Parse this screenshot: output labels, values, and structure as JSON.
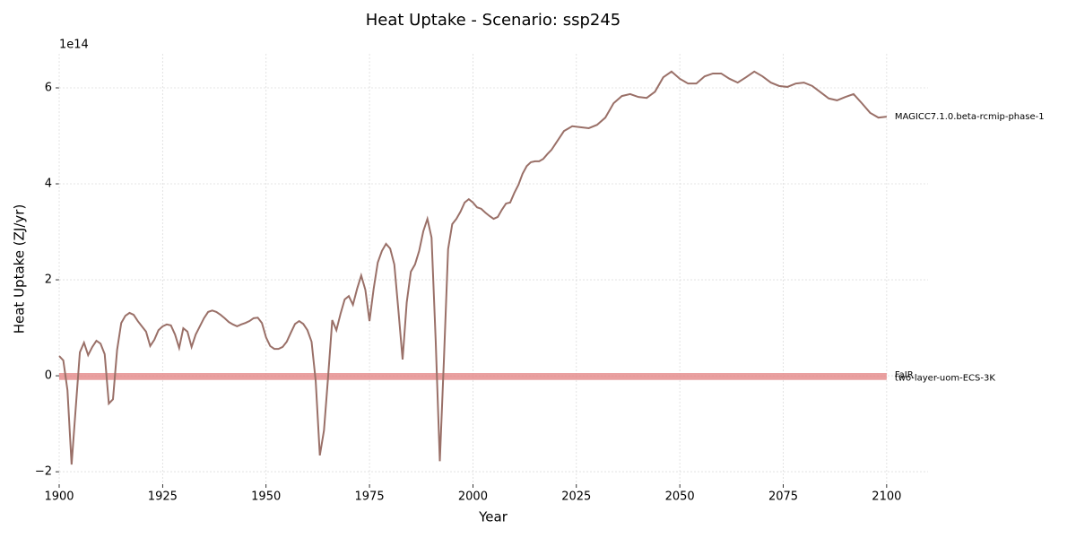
{
  "chart_data": {
    "type": "line",
    "title": "Heat Uptake - Scenario: ssp245",
    "x_label": "Year",
    "y_label": "Heat Uptake (ZJ/yr)",
    "y_offset_label": "1e14",
    "xlim": [
      1900,
      2110
    ],
    "xticks": [
      1900,
      1925,
      1950,
      1975,
      2000,
      2025,
      2050,
      2075,
      2100
    ],
    "ylim": [
      -2.26,
      6.71
    ],
    "yticks": [
      {
        "value": -2,
        "label": "−2"
      },
      0,
      2,
      4,
      6
    ],
    "grid": true,
    "series": [
      {
        "name": "MAGICC7.1.0.beta-rcmip-phase-1",
        "color": "#9a7068",
        "x": [
          1900,
          1901,
          1902,
          1903,
          1904,
          1905,
          1906,
          1907,
          1908,
          1909,
          1910,
          1911,
          1912,
          1913,
          1914,
          1915,
          1916,
          1917,
          1918,
          1919,
          1920,
          1921,
          1922,
          1923,
          1924,
          1925,
          1926,
          1927,
          1928,
          1929,
          1930,
          1931,
          1932,
          1933,
          1934,
          1935,
          1936,
          1937,
          1938,
          1939,
          1940,
          1941,
          1942,
          1943,
          1944,
          1945,
          1946,
          1947,
          1948,
          1949,
          1950,
          1951,
          1952,
          1953,
          1954,
          1955,
          1956,
          1957,
          1958,
          1959,
          1960,
          1961,
          1962,
          1963,
          1964,
          1965,
          1966,
          1967,
          1968,
          1969,
          1970,
          1971,
          1972,
          1973,
          1974,
          1975,
          1976,
          1977,
          1978,
          1979,
          1980,
          1981,
          1982,
          1983,
          1984,
          1985,
          1986,
          1987,
          1988,
          1989,
          1990,
          1991,
          1992,
          1993,
          1994,
          1995,
          1996,
          1997,
          1998,
          1999,
          2000,
          2001,
          2002,
          2003,
          2004,
          2005,
          2006,
          2007,
          2008,
          2009,
          2010,
          2011,
          2012,
          2013,
          2014,
          2015,
          2016,
          2017,
          2018,
          2019,
          2020,
          2022,
          2024,
          2026,
          2028,
          2030,
          2032,
          2034,
          2036,
          2038,
          2040,
          2042,
          2044,
          2046,
          2048,
          2050,
          2052,
          2054,
          2056,
          2058,
          2060,
          2062,
          2064,
          2066,
          2068,
          2070,
          2072,
          2074,
          2076,
          2078,
          2080,
          2082,
          2084,
          2086,
          2088,
          2090,
          2092,
          2094,
          2096,
          2098,
          2100
        ],
        "values": [
          0.41,
          0.32,
          -0.3,
          -1.85,
          -0.67,
          0.49,
          0.69,
          0.43,
          0.6,
          0.73,
          0.67,
          0.45,
          -0.58,
          -0.49,
          0.54,
          1.1,
          1.25,
          1.31,
          1.27,
          1.14,
          1.03,
          0.92,
          0.62,
          0.75,
          0.95,
          1.03,
          1.07,
          1.05,
          0.86,
          0.58,
          0.99,
          0.92,
          0.6,
          0.86,
          1.03,
          1.2,
          1.33,
          1.36,
          1.33,
          1.27,
          1.2,
          1.12,
          1.07,
          1.03,
          1.07,
          1.1,
          1.14,
          1.2,
          1.21,
          1.1,
          0.8,
          0.62,
          0.56,
          0.56,
          0.6,
          0.71,
          0.9,
          1.08,
          1.14,
          1.08,
          0.95,
          0.71,
          -0.11,
          -1.66,
          -1.14,
          -0.02,
          1.16,
          0.95,
          1.29,
          1.59,
          1.66,
          1.48,
          1.81,
          2.09,
          1.79,
          1.14,
          1.81,
          2.36,
          2.6,
          2.75,
          2.65,
          2.32,
          1.35,
          0.34,
          1.53,
          2.17,
          2.32,
          2.6,
          3.01,
          3.27,
          2.88,
          0.73,
          -1.78,
          0.36,
          2.64,
          3.16,
          3.27,
          3.42,
          3.61,
          3.68,
          3.61,
          3.51,
          3.48,
          3.4,
          3.33,
          3.27,
          3.31,
          3.46,
          3.59,
          3.61,
          3.81,
          3.98,
          4.21,
          4.37,
          4.45,
          4.47,
          4.47,
          4.52,
          4.62,
          4.71,
          4.84,
          5.1,
          5.2,
          5.18,
          5.16,
          5.23,
          5.38,
          5.68,
          5.83,
          5.87,
          5.81,
          5.79,
          5.92,
          6.22,
          6.34,
          6.19,
          6.09,
          6.09,
          6.24,
          6.3,
          6.3,
          6.19,
          6.11,
          6.22,
          6.34,
          6.24,
          6.11,
          6.04,
          6.02,
          6.09,
          6.11,
          6.04,
          5.91,
          5.78,
          5.74,
          5.81,
          5.87,
          5.68,
          5.48,
          5.38,
          5.4
        ]
      },
      {
        "name": "FaIR",
        "color": "#e58f8f",
        "x": [
          1900,
          2100
        ],
        "values": [
          0.02,
          0.02
        ]
      },
      {
        "name": "two-layer-uom-ECS-3K",
        "color": "#e58f8f",
        "x": [
          1900,
          2100
        ],
        "values": [
          -0.05,
          -0.05
        ]
      }
    ]
  }
}
